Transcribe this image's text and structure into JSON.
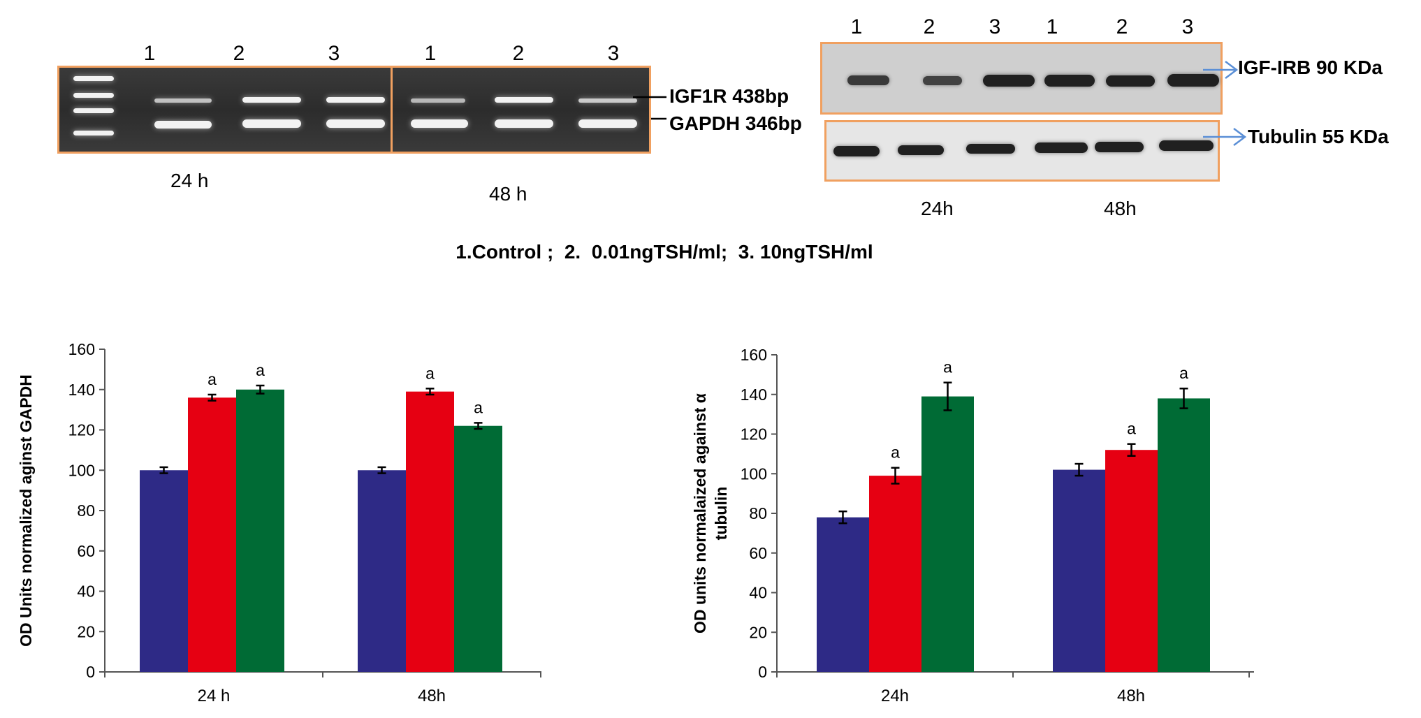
{
  "gel": {
    "lane_labels": [
      "1",
      "2",
      "3",
      "1",
      "2",
      "3"
    ],
    "band_labels": [
      "IGF1R 438bp",
      "GAPDH 346bp"
    ],
    "time_labels": [
      "24 h",
      "48 h"
    ]
  },
  "blot": {
    "lane_labels": [
      "1",
      "2",
      "3",
      "1",
      "2",
      "3"
    ],
    "band_labels": [
      "IGF-IRB 90 KDa",
      "Tubulin 55 KDa"
    ],
    "time_labels": [
      "24h",
      "48h"
    ]
  },
  "legend_text": "1.Control ;  2.  0.01ngTSH/ml;  3. 10ngTSH/ml",
  "colors": {
    "control": "#2e2a86",
    "low": "#e60012",
    "high": "#006b35",
    "border": "#f0a060",
    "arrow": "#5b8fd6"
  },
  "chart_data": [
    {
      "type": "bar",
      "title": "",
      "ylabel": "OD Units normalized aginst GAPDH",
      "xlabel": "",
      "categories": [
        "24 h",
        "48h"
      ],
      "ylim": [
        0,
        160
      ],
      "yticks": [
        0,
        20,
        40,
        60,
        80,
        100,
        120,
        140,
        160
      ],
      "series": [
        {
          "name": "Control",
          "values": [
            100,
            100
          ],
          "errors": [
            1.5,
            1.5
          ],
          "labels": [
            "",
            ""
          ]
        },
        {
          "name": "0.01ngTSH/ml",
          "values": [
            136,
            139
          ],
          "errors": [
            1.5,
            1.5
          ],
          "labels": [
            "a",
            "a"
          ]
        },
        {
          "name": "10ngTSH/ml",
          "values": [
            140,
            122
          ],
          "errors": [
            2,
            1.5
          ],
          "labels": [
            "a",
            "a"
          ]
        }
      ]
    },
    {
      "type": "bar",
      "title": "",
      "ylabel": "OD units normalaized against α tubulin",
      "ylabel_lines": [
        "OD units normalaized against α",
        "tubulin"
      ],
      "xlabel": "",
      "categories": [
        "24h",
        "48h"
      ],
      "ylim": [
        0,
        160
      ],
      "yticks": [
        0,
        20,
        40,
        60,
        80,
        100,
        120,
        140,
        160
      ],
      "series": [
        {
          "name": "Control",
          "values": [
            78,
            102
          ],
          "errors": [
            3,
            3
          ],
          "labels": [
            "",
            ""
          ]
        },
        {
          "name": "0.01ngTSH/ml",
          "values": [
            99,
            112
          ],
          "errors": [
            4,
            3
          ],
          "labels": [
            "a",
            "a"
          ]
        },
        {
          "name": "10ngTSH/ml",
          "values": [
            139,
            138
          ],
          "errors": [
            7,
            5
          ],
          "labels": [
            "a",
            "a"
          ]
        }
      ]
    }
  ]
}
